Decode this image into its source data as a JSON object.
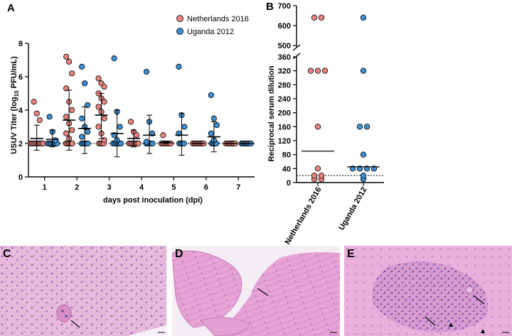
{
  "panel_labels": {
    "a": "A",
    "b": "B",
    "c": "C",
    "d": "D",
    "e": "E"
  },
  "colors": {
    "netherlands": "#e8837f",
    "uganda": "#3d8fd1",
    "he_pink": "#e5a8d6",
    "he_purple": "#a67bc4"
  },
  "chart_data": [
    {
      "type": "scatter",
      "panel": "A",
      "xlabel": "days post inoculation (dpi)",
      "ylabel": "USUV Titer (log10 PFU/mL)",
      "ylabel_parts": {
        "pre": "USUV Titer (log",
        "sub": "10",
        "post": " PFU/mL)"
      },
      "x_ticks": [
        "1",
        "2",
        "3",
        "4",
        "5",
        "6",
        "7"
      ],
      "y_ticks": [
        "0",
        "2",
        "4",
        "6",
        "8"
      ],
      "ylim": [
        0,
        8
      ],
      "detection_limit": 2,
      "legend_position": "top-right",
      "series": [
        {
          "name": "Netherlands 2016",
          "color": "#e8837f",
          "points": [
            {
              "dpi": 1,
              "values": [
                4.5,
                3.8,
                3.4,
                2,
                2,
                2,
                2,
                2,
                2,
                2,
                2,
                2
              ]
            },
            {
              "dpi": 2,
              "values": [
                7.2,
                6.9,
                6.2,
                5.3,
                4.5,
                4.0,
                3.6,
                3.2,
                2.8,
                2.6,
                2.3,
                2,
                2,
                2,
                2,
                2
              ]
            },
            {
              "dpi": 3,
              "values": [
                5.9,
                5.6,
                5.4,
                5.0,
                4.7,
                4.5,
                4.2,
                3.9,
                3.5,
                3.0,
                2.6,
                2.2,
                2,
                2,
                2,
                2
              ]
            },
            {
              "dpi": 4,
              "values": [
                3.3,
                2.7,
                2.5,
                2,
                2,
                2,
                2,
                2,
                2,
                2
              ]
            },
            {
              "dpi": 5,
              "values": [
                2.5,
                2,
                2,
                2,
                2,
                2,
                2,
                2
              ]
            },
            {
              "dpi": 6,
              "values": [
                2,
                2,
                2,
                2,
                2,
                2,
                2,
                2
              ]
            },
            {
              "dpi": 7,
              "values": [
                2,
                2,
                2,
                2,
                2,
                2,
                2
              ]
            }
          ],
          "mean_sd": [
            {
              "dpi": 1,
              "mean": 2.3,
              "sd_low": 1.6,
              "sd_high": 3.1
            },
            {
              "dpi": 2,
              "mean": 3.4,
              "sd_low": 1.6,
              "sd_high": 5.2
            },
            {
              "dpi": 3,
              "mean": 3.7,
              "sd_low": 2.3,
              "sd_high": 5.0
            },
            {
              "dpi": 4,
              "mean": 2.3,
              "sd_low": 1.8,
              "sd_high": 2.8
            },
            {
              "dpi": 5,
              "mean": 2.05,
              "sd_low": 2.0,
              "sd_high": 2.1
            },
            {
              "dpi": 6,
              "mean": 2.0,
              "sd_low": 2.0,
              "sd_high": 2.0
            },
            {
              "dpi": 7,
              "mean": 2.0,
              "sd_low": 2.0,
              "sd_high": 2.0
            }
          ]
        },
        {
          "name": "Uganda 2012",
          "color": "#3d8fd1",
          "points": [
            {
              "dpi": 1,
              "values": [
                3.6,
                2.7,
                2.2,
                2,
                2,
                2,
                2,
                2,
                2,
                2
              ]
            },
            {
              "dpi": 2,
              "values": [
                6.6,
                5.6,
                4.3,
                3.5,
                3.0,
                2.7,
                2.4,
                2,
                2,
                2,
                2,
                2
              ]
            },
            {
              "dpi": 3,
              "values": [
                7.1,
                3.9,
                3.0,
                2.5,
                2.2,
                2,
                2,
                2,
                2,
                2,
                2
              ]
            },
            {
              "dpi": 4,
              "values": [
                6.3,
                3.3,
                2.6,
                2.1,
                2,
                2,
                2,
                2,
                2
              ]
            },
            {
              "dpi": 5,
              "values": [
                6.6,
                3.7,
                3.0,
                2.6,
                2,
                2,
                2,
                2
              ]
            },
            {
              "dpi": 6,
              "values": [
                4.9,
                3.5,
                3.1,
                2.6,
                2.2,
                2,
                2,
                2,
                2
              ]
            },
            {
              "dpi": 7,
              "values": [
                2,
                2,
                2,
                2,
                2,
                2,
                2
              ]
            }
          ],
          "mean_sd": [
            {
              "dpi": 1,
              "mean": 2.25,
              "sd_low": 1.8,
              "sd_high": 2.8
            },
            {
              "dpi": 2,
              "mean": 2.9,
              "sd_low": 1.4,
              "sd_high": 4.2
            },
            {
              "dpi": 3,
              "mean": 2.6,
              "sd_low": 1.2,
              "sd_high": 4.0
            },
            {
              "dpi": 4,
              "mean": 2.5,
              "sd_low": 1.4,
              "sd_high": 3.7
            },
            {
              "dpi": 5,
              "mean": 2.5,
              "sd_low": 1.3,
              "sd_high": 3.8
            },
            {
              "dpi": 6,
              "mean": 2.4,
              "sd_low": 1.5,
              "sd_high": 3.3
            },
            {
              "dpi": 7,
              "mean": 2.0,
              "sd_low": 2.0,
              "sd_high": 2.0
            }
          ]
        }
      ]
    },
    {
      "type": "scatter",
      "panel": "B",
      "ylabel": "Reciprocal serum dilution",
      "categories": [
        "Netherlands 2016",
        "Uganda 2012"
      ],
      "y_ticks_lower": [
        "0",
        "40",
        "80",
        "120",
        "160",
        "200",
        "240",
        "280",
        "320",
        "360"
      ],
      "y_ticks_upper": [
        "500",
        "600",
        "700"
      ],
      "axis_break": [
        360,
        500
      ],
      "detection_limit": 20,
      "series": [
        {
          "name": "Netherlands 2016",
          "color": "#e8837f",
          "values": [
            640,
            640,
            320,
            320,
            320,
            160,
            40,
            20,
            20,
            10,
            10
          ],
          "median": 90
        },
        {
          "name": "Uganda 2012",
          "color": "#3d8fd1",
          "values": [
            640,
            320,
            160,
            160,
            80,
            40,
            40,
            40,
            40,
            20,
            10
          ],
          "median": 45
        }
      ]
    }
  ]
}
